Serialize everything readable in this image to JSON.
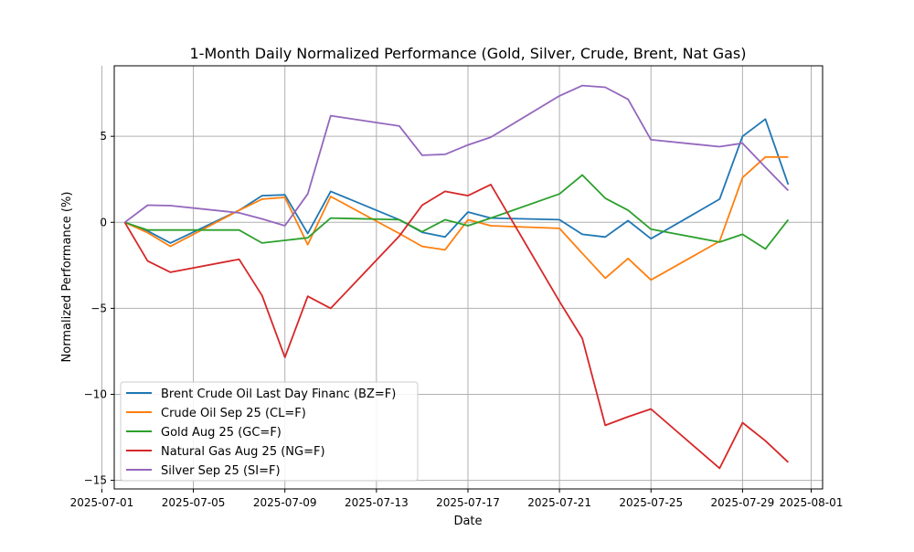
{
  "chart_data": {
    "type": "line",
    "title": "1-Month Daily Normalized Performance (Gold, Silver, Crude, Brent, Nat Gas)",
    "xlabel": "Date",
    "ylabel": "Normalized Performance (%)",
    "xlim": [
      "2025-07-01T13:00",
      "2025-08-01T12:00"
    ],
    "ylim": [
      -15.5,
      9.1
    ],
    "grid": true,
    "legend_position": "lower-left",
    "x_ticks": [
      "2025-07-01",
      "2025-07-05",
      "2025-07-09",
      "2025-07-13",
      "2025-07-17",
      "2025-07-21",
      "2025-07-25",
      "2025-07-29",
      "2025-08-01"
    ],
    "y_ticks": [
      5,
      0,
      -5,
      -10,
      -15
    ],
    "y_tick_labels": [
      "5",
      "0",
      "−5",
      "−10",
      "−15"
    ],
    "x": [
      "2025-07-02",
      "2025-07-03",
      "2025-07-04",
      "2025-07-07",
      "2025-07-08",
      "2025-07-09",
      "2025-07-10",
      "2025-07-11",
      "2025-07-14",
      "2025-07-15",
      "2025-07-16",
      "2025-07-17",
      "2025-07-18",
      "2025-07-21",
      "2025-07-22",
      "2025-07-23",
      "2025-07-24",
      "2025-07-25",
      "2025-07-28",
      "2025-07-29",
      "2025-07-30",
      "2025-07-31"
    ],
    "series": [
      {
        "name": "Brent Crude Oil Last Day Financ (BZ=F)",
        "color": "#1f77b4",
        "values": [
          0,
          -0.5,
          -1.2,
          0.7,
          1.55,
          1.6,
          -0.65,
          1.8,
          0.15,
          -0.58,
          -0.85,
          0.6,
          0.25,
          0.15,
          -0.7,
          -0.85,
          0.1,
          -0.95,
          1.35,
          5.0,
          6.0,
          2.2
        ]
      },
      {
        "name": "Crude Oil Sep 25 (CL=F)",
        "color": "#ff7f0e",
        "values": [
          0,
          -0.6,
          -1.4,
          0.7,
          1.35,
          1.45,
          -1.3,
          1.5,
          -0.65,
          -1.4,
          -1.6,
          0.15,
          -0.2,
          -0.35,
          -1.8,
          -3.25,
          -2.1,
          -3.35,
          -1.1,
          2.6,
          3.8,
          3.8
        ]
      },
      {
        "name": "Gold Aug 25 (GC=F)",
        "color": "#2ca02c",
        "values": [
          0,
          -0.45,
          -0.45,
          -0.45,
          -1.2,
          -1.05,
          -0.9,
          0.25,
          0.15,
          -0.55,
          0.15,
          -0.2,
          0.25,
          1.65,
          2.75,
          1.4,
          0.7,
          -0.4,
          -1.15,
          -0.7,
          -1.55,
          0.15
        ]
      },
      {
        "name": "Natural Gas Aug 25 (NG=F)",
        "color": "#d62728",
        "values": [
          0,
          -2.25,
          -2.9,
          -2.15,
          -4.25,
          -7.85,
          -4.3,
          -5.0,
          -0.8,
          1.0,
          1.8,
          1.55,
          2.2,
          -4.6,
          -6.75,
          -11.8,
          -11.3,
          -10.85,
          -14.3,
          -11.65,
          -12.7,
          -13.95
        ]
      },
      {
        "name": "Silver Sep 25 (SI=F)",
        "color": "#9467bd",
        "values": [
          0,
          1.0,
          0.97,
          0.55,
          0.2,
          -0.2,
          1.65,
          6.2,
          5.6,
          3.9,
          3.95,
          4.5,
          4.95,
          7.35,
          7.95,
          7.85,
          7.15,
          4.8,
          4.4,
          4.6,
          3.2,
          1.85
        ]
      }
    ]
  }
}
